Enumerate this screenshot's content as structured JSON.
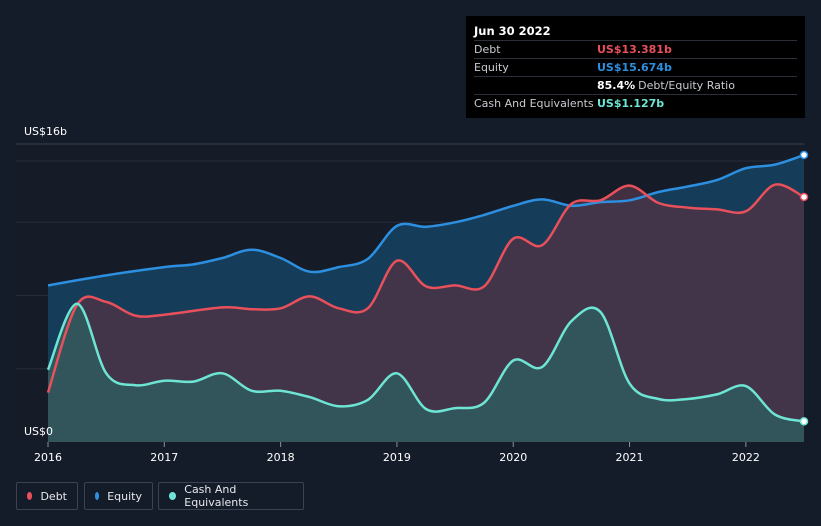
{
  "tooltip": {
    "date": "Jun 30 2022",
    "rows": [
      {
        "label": "Debt",
        "value": "US$13.381b",
        "color": "#e8505b"
      },
      {
        "label": "Equity",
        "value": "US$15.674b",
        "color": "#2d8fe0"
      },
      {
        "label": "",
        "value": "85.4%",
        "suffix": "Debt/Equity Ratio",
        "color": "#ffffff"
      },
      {
        "label": "Cash And Equivalents",
        "value": "US$1.127b",
        "color": "#6ee5d4"
      }
    ]
  },
  "legend": [
    {
      "label": "Debt",
      "color": "#e8505b"
    },
    {
      "label": "Equity",
      "color": "#2d8fe0"
    },
    {
      "label": "Cash And Equivalents",
      "color": "#6ee5d4"
    }
  ],
  "chart_data": {
    "type": "area",
    "y_top_label": "US$16b",
    "y_bottom_label": "US$0",
    "ylim": [
      0,
      16
    ],
    "xlim": [
      2016,
      2022.5
    ],
    "x_ticks": [
      "2016",
      "2017",
      "2018",
      "2019",
      "2020",
      "2021",
      "2022"
    ],
    "grid": true,
    "series": [
      {
        "name": "Equity",
        "color": "#2d8fe0",
        "points": [
          [
            2016.0,
            8.55
          ],
          [
            2016.5,
            9.1
          ],
          [
            2017.0,
            9.55
          ],
          [
            2017.25,
            9.7
          ],
          [
            2017.5,
            10.05
          ],
          [
            2017.75,
            10.5
          ],
          [
            2018.0,
            10.05
          ],
          [
            2018.25,
            9.3
          ],
          [
            2018.5,
            9.55
          ],
          [
            2018.75,
            10.0
          ],
          [
            2019.0,
            11.8
          ],
          [
            2019.25,
            11.75
          ],
          [
            2019.5,
            12.0
          ],
          [
            2019.75,
            12.4
          ],
          [
            2020.0,
            12.9
          ],
          [
            2020.25,
            13.25
          ],
          [
            2020.5,
            12.9
          ],
          [
            2020.75,
            13.1
          ],
          [
            2021.0,
            13.2
          ],
          [
            2021.25,
            13.65
          ],
          [
            2021.5,
            13.95
          ],
          [
            2021.75,
            14.3
          ],
          [
            2022.0,
            14.95
          ],
          [
            2022.25,
            15.15
          ],
          [
            2022.5,
            15.674
          ]
        ]
      },
      {
        "name": "Debt",
        "color": "#e8505b",
        "points": [
          [
            2016.0,
            2.7
          ],
          [
            2016.25,
            7.5
          ],
          [
            2016.5,
            7.65
          ],
          [
            2016.75,
            6.9
          ],
          [
            2017.0,
            6.95
          ],
          [
            2017.5,
            7.35
          ],
          [
            2017.75,
            7.25
          ],
          [
            2018.0,
            7.3
          ],
          [
            2018.25,
            7.95
          ],
          [
            2018.5,
            7.3
          ],
          [
            2018.75,
            7.3
          ],
          [
            2019.0,
            9.9
          ],
          [
            2019.25,
            8.5
          ],
          [
            2019.5,
            8.55
          ],
          [
            2019.75,
            8.5
          ],
          [
            2020.0,
            11.1
          ],
          [
            2020.25,
            10.75
          ],
          [
            2020.5,
            13.0
          ],
          [
            2020.75,
            13.2
          ],
          [
            2021.0,
            14.0
          ],
          [
            2021.25,
            13.05
          ],
          [
            2021.5,
            12.8
          ],
          [
            2021.75,
            12.7
          ],
          [
            2022.0,
            12.6
          ],
          [
            2022.25,
            14.05
          ],
          [
            2022.5,
            13.381
          ]
        ]
      },
      {
        "name": "Cash And Equivalents",
        "color": "#6ee5d4",
        "points": [
          [
            2016.0,
            3.95
          ],
          [
            2016.25,
            7.55
          ],
          [
            2016.5,
            3.75
          ],
          [
            2016.75,
            3.1
          ],
          [
            2017.0,
            3.35
          ],
          [
            2017.25,
            3.3
          ],
          [
            2017.5,
            3.75
          ],
          [
            2017.75,
            2.8
          ],
          [
            2018.0,
            2.8
          ],
          [
            2018.25,
            2.45
          ],
          [
            2018.5,
            1.95
          ],
          [
            2018.75,
            2.3
          ],
          [
            2019.0,
            3.75
          ],
          [
            2019.25,
            1.8
          ],
          [
            2019.5,
            1.85
          ],
          [
            2019.75,
            2.15
          ],
          [
            2020.0,
            4.45
          ],
          [
            2020.25,
            4.1
          ],
          [
            2020.5,
            6.6
          ],
          [
            2020.75,
            7.1
          ],
          [
            2021.0,
            3.2
          ],
          [
            2021.25,
            2.35
          ],
          [
            2021.5,
            2.35
          ],
          [
            2021.75,
            2.6
          ],
          [
            2022.0,
            3.05
          ],
          [
            2022.25,
            1.5
          ],
          [
            2022.5,
            1.127
          ]
        ]
      }
    ]
  }
}
